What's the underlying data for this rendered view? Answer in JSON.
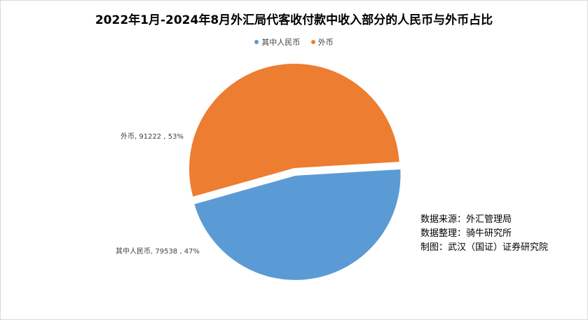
{
  "chart_data": {
    "type": "pie",
    "title": "2022年1月-2024年8月外汇局代客收付款中收入部分的人民币与外币占比",
    "legend_position": "top",
    "slices": [
      {
        "name": "其中人民币",
        "value": 79538,
        "percent": "47%",
        "label": "其中人民币, 79538 , 47%",
        "color": "#5B9BD5",
        "exploded": true
      },
      {
        "name": "外币",
        "value": 91222,
        "percent": "53%",
        "label": "外币, 91222 , 53%",
        "color": "#ED7D31",
        "exploded": false
      }
    ]
  },
  "notes": [
    "数据来源：外汇管理局",
    "数据整理：骑牛研究所",
    "制图：武汉（国证）证券研究院"
  ]
}
